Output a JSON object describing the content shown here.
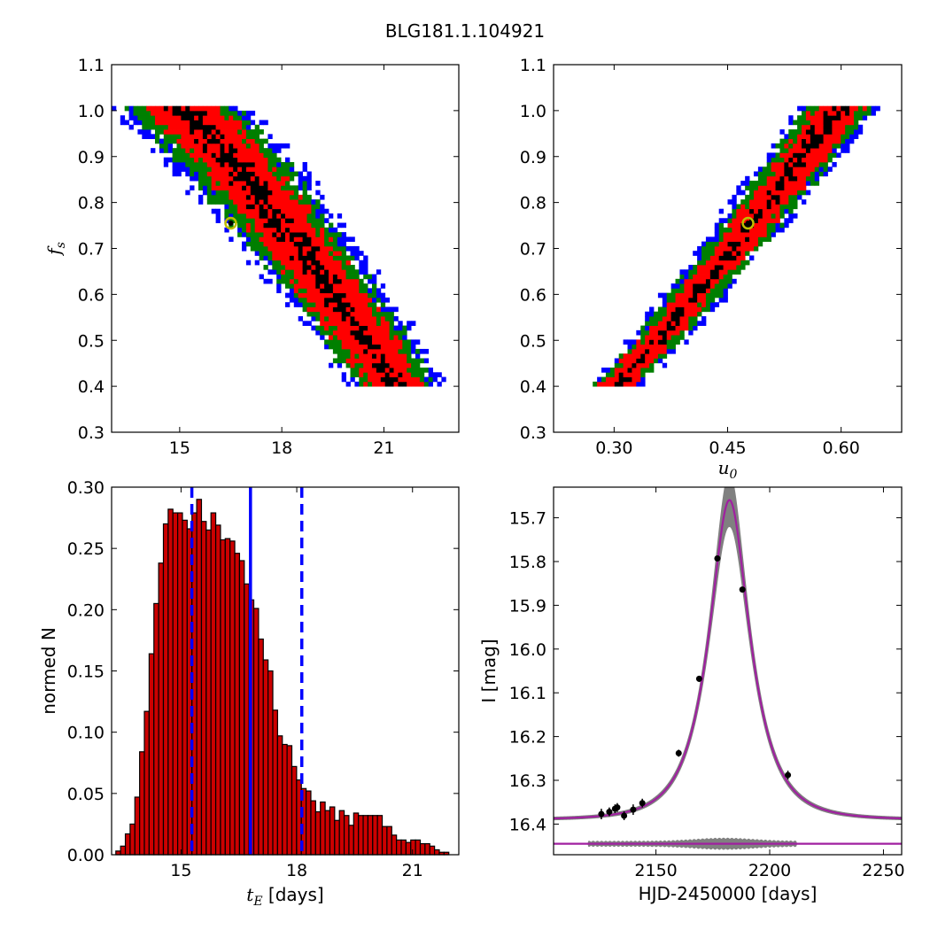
{
  "figure": {
    "title": "BLG181.1.104921"
  },
  "colors": {
    "blue": "#0000ff",
    "green": "#007f00",
    "red": "#ff0000",
    "black": "#000000",
    "marker_edge": "#bfbf00",
    "hist_fill": "#cc0000",
    "model": "#a020a0",
    "band": "#808080"
  },
  "chart_data": [
    {
      "type": "heatmap",
      "id": "fs_vs_tE",
      "xlabel": "",
      "ylabel_math": "f",
      "ylabel_sub": "s",
      "xlim": [
        13,
        23.2
      ],
      "ylim": [
        0.3,
        1.1
      ],
      "xticks": [
        "15",
        "18",
        "21"
      ],
      "xtick_values": [
        15,
        18,
        21
      ],
      "yticks": [
        "0.3",
        "0.4",
        "0.5",
        "0.6",
        "0.7",
        "0.8",
        "0.9",
        "1.0",
        "1.1"
      ],
      "ytick_values": [
        0.3,
        0.4,
        0.5,
        0.6,
        0.7,
        0.8,
        0.9,
        1.0,
        1.1
      ],
      "density_ridge": {
        "y_range": [
          0.4,
          1.01
        ],
        "x_at_y_max": 14.9,
        "x_at_y_min": 21.4
      },
      "best_fit": {
        "x": 16.5,
        "y": 0.755
      }
    },
    {
      "type": "heatmap",
      "id": "fs_vs_u0",
      "xlabel_math": "u",
      "xlabel_sub": "0",
      "xlim": [
        0.22,
        0.68
      ],
      "ylim": [
        0.3,
        1.1
      ],
      "xticks": [
        "0.30",
        "0.45",
        "0.60"
      ],
      "xtick_values": [
        0.3,
        0.45,
        0.6
      ],
      "yticks": [
        "0.3",
        "0.4",
        "0.5",
        "0.6",
        "0.7",
        "0.8",
        "0.9",
        "1.0",
        "1.1"
      ],
      "ytick_values": [
        0.3,
        0.4,
        0.5,
        0.6,
        0.7,
        0.8,
        0.9,
        1.0,
        1.1
      ],
      "density_ridge": {
        "y_range": [
          0.4,
          1.01
        ],
        "x_at_y_min": 0.3,
        "x_at_y_max": 0.6
      },
      "best_fit": {
        "x": 0.477,
        "y": 0.755
      }
    },
    {
      "type": "bar",
      "id": "tE_histogram",
      "xlabel_math": "t",
      "xlabel_sub": "E",
      "xlabel_text": " [days]",
      "ylabel": "normed N",
      "xlim": [
        13.2,
        22.2
      ],
      "ylim": [
        0,
        0.3
      ],
      "xticks": [
        "15",
        "18",
        "21"
      ],
      "xtick_values": [
        15,
        18,
        21
      ],
      "yticks": [
        "0.00",
        "0.05",
        "0.10",
        "0.15",
        "0.20",
        "0.25",
        "0.30"
      ],
      "ytick_values": [
        0,
        0.05,
        0.1,
        0.15,
        0.2,
        0.25,
        0.3
      ],
      "bin_start": 13.31,
      "bin_width": 0.1233,
      "values": [
        0.003,
        0.007,
        0.017,
        0.025,
        0.047,
        0.084,
        0.117,
        0.164,
        0.205,
        0.238,
        0.27,
        0.282,
        0.279,
        0.279,
        0.273,
        0.266,
        0.279,
        0.29,
        0.272,
        0.265,
        0.279,
        0.269,
        0.257,
        0.258,
        0.256,
        0.246,
        0.24,
        0.221,
        0.208,
        0.201,
        0.176,
        0.159,
        0.15,
        0.118,
        0.097,
        0.09,
        0.089,
        0.072,
        0.061,
        0.054,
        0.052,
        0.044,
        0.035,
        0.043,
        0.036,
        0.039,
        0.028,
        0.036,
        0.032,
        0.024,
        0.034,
        0.032,
        0.032,
        0.032,
        0.032,
        0.032,
        0.023,
        0.023,
        0.016,
        0.012,
        0.012,
        0.01,
        0.012,
        0.012,
        0.009,
        0.009,
        0.007,
        0.004,
        0.002,
        0.002
      ],
      "vlines": {
        "median": 16.8,
        "lower": 15.28,
        "upper": 18.13
      }
    },
    {
      "type": "line",
      "id": "light_curve",
      "xlabel": "HJD-2450000 [days]",
      "ylabel": "I [mag]",
      "xlim": [
        2105,
        2258
      ],
      "ylim": [
        16.47,
        15.63
      ],
      "xticks": [
        "2150",
        "2200",
        "2250"
      ],
      "xtick_values": [
        2150,
        2200,
        2250
      ],
      "yticks": [
        "15.7",
        "15.8",
        "15.9",
        "16.0",
        "16.1",
        "16.2",
        "16.3",
        "16.4"
      ],
      "ytick_values": [
        15.7,
        15.8,
        15.9,
        16.0,
        16.1,
        16.2,
        16.3,
        16.4
      ],
      "model": {
        "t0": 2182.3,
        "tE": 16.5,
        "u0": 0.477,
        "fs": 0.755,
        "I_base": 16.39
      },
      "residual_baseline": 16.445,
      "points": [
        {
          "x": 2126,
          "y": 16.377,
          "err": 0.012
        },
        {
          "x": 2129.5,
          "y": 16.372,
          "err": 0.01
        },
        {
          "x": 2132,
          "y": 16.365,
          "err": 0.01
        },
        {
          "x": 2133,
          "y": 16.362,
          "err": 0.01
        },
        {
          "x": 2136,
          "y": 16.381,
          "err": 0.01
        },
        {
          "x": 2140,
          "y": 16.367,
          "err": 0.012
        },
        {
          "x": 2144,
          "y": 16.352,
          "err": 0.01
        },
        {
          "x": 2160,
          "y": 16.238,
          "err": 0.008
        },
        {
          "x": 2169,
          "y": 16.068,
          "err": 0.007
        },
        {
          "x": 2177,
          "y": 15.793,
          "err": 0.006
        },
        {
          "x": 2188,
          "y": 15.864,
          "err": 0.006
        },
        {
          "x": 2208,
          "y": 16.288,
          "err": 0.01
        }
      ]
    }
  ]
}
